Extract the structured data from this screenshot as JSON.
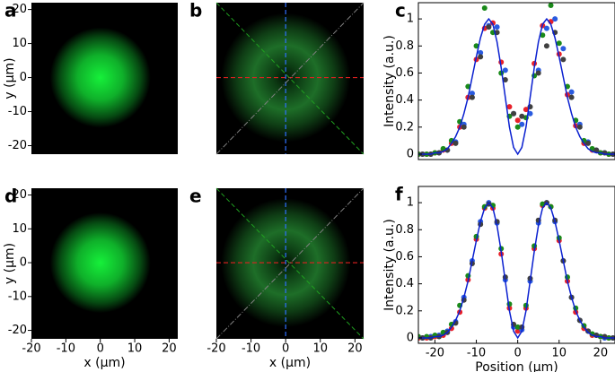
{
  "chart_data": [
    {
      "type": "image",
      "label": "a",
      "pattern": "spot",
      "xlim": [
        -20,
        22.5
      ],
      "ylim": [
        -22.5,
        22
      ],
      "yticks": [
        20,
        10,
        0,
        -10,
        -20
      ],
      "ylabel": "y (μm)"
    },
    {
      "type": "image",
      "label": "b",
      "pattern": "ring",
      "xlim": [
        -20,
        22.5
      ],
      "ylim": [
        -22.5,
        22
      ]
    },
    {
      "type": "line",
      "label": "c",
      "ylabel": "Intensity (a.u.)",
      "xlim": [
        -24,
        23.5
      ],
      "ylim": [
        -0.04,
        1.12
      ],
      "yticks": [
        0,
        0.2,
        0.4,
        0.6,
        0.8,
        1
      ],
      "series": [
        {
          "style": "markers",
          "color": "#e8202a",
          "x": [
            -24,
            -22,
            -20,
            -18,
            -16,
            -14,
            -12,
            -10,
            -8,
            -6,
            -4,
            -2,
            0,
            2,
            4,
            6,
            8,
            10,
            12,
            14,
            16,
            18,
            20,
            22,
            24
          ],
          "values": [
            0,
            0,
            0.01,
            0.03,
            0.08,
            0.2,
            0.42,
            0.7,
            0.93,
            0.97,
            0.68,
            0.35,
            0.25,
            0.33,
            0.67,
            0.95,
            0.98,
            0.74,
            0.44,
            0.21,
            0.08,
            0.03,
            0.01,
            0,
            0
          ]
        },
        {
          "style": "markers",
          "color": "#2a5be0",
          "x": [
            -23,
            -21,
            -19,
            -17,
            -15,
            -13,
            -11,
            -9,
            -7,
            -5,
            -3,
            -1,
            1,
            3,
            5,
            7,
            9,
            11,
            13,
            15,
            17,
            19,
            21,
            23,
            25
          ],
          "values": [
            0,
            0,
            0.01,
            0.03,
            0.09,
            0.22,
            0.45,
            0.75,
            0.95,
            0.94,
            0.62,
            0.3,
            0.22,
            0.3,
            0.62,
            0.93,
            1.0,
            0.78,
            0.46,
            0.22,
            0.09,
            0.03,
            0.01,
            0,
            0
          ]
        },
        {
          "style": "markers",
          "color": "#1a8a1a",
          "x": [
            -24,
            -22,
            -20,
            -18,
            -16,
            -14,
            -12,
            -10,
            -8,
            -6,
            -4,
            -2,
            0,
            2,
            4,
            6,
            8,
            10,
            12,
            14,
            16,
            18,
            20,
            22,
            24
          ],
          "values": [
            0,
            0,
            0.01,
            0.04,
            0.1,
            0.24,
            0.5,
            0.8,
            1.08,
            0.9,
            0.6,
            0.28,
            0.2,
            0.27,
            0.58,
            0.88,
            1.1,
            0.82,
            0.5,
            0.25,
            0.1,
            0.04,
            0.01,
            0,
            0
          ]
        },
        {
          "style": "markers",
          "color": "#404040",
          "x": [
            -23,
            -21,
            -19,
            -17,
            -15,
            -13,
            -11,
            -9,
            -7,
            -5,
            -3,
            -1,
            1,
            3,
            5,
            7,
            9,
            11,
            13,
            15,
            17,
            19,
            21,
            23,
            25
          ],
          "values": [
            0,
            0,
            0.01,
            0.03,
            0.08,
            0.2,
            0.42,
            0.72,
            0.94,
            0.9,
            0.55,
            0.3,
            0.28,
            0.35,
            0.6,
            0.8,
            0.9,
            0.7,
            0.42,
            0.2,
            0.08,
            0.03,
            0.01,
            0,
            0
          ]
        },
        {
          "style": "line",
          "color": "#0a20d0",
          "x": [
            -24,
            -23,
            -22,
            -21,
            -20,
            -19,
            -18,
            -17,
            -16,
            -15,
            -14,
            -13,
            -12,
            -11,
            -10,
            -9,
            -8,
            -7,
            -6,
            -5,
            -4,
            -3,
            -2,
            -1,
            0,
            1,
            2,
            3,
            4,
            5,
            6,
            7,
            8,
            9,
            10,
            11,
            12,
            13,
            14,
            15,
            16,
            17,
            18,
            19,
            20,
            21,
            22,
            23,
            24
          ],
          "values": [
            0,
            0,
            0,
            0,
            0.01,
            0.01,
            0.02,
            0.04,
            0.08,
            0.13,
            0.2,
            0.3,
            0.42,
            0.57,
            0.72,
            0.86,
            0.96,
            1,
            0.96,
            0.83,
            0.64,
            0.42,
            0.2,
            0.05,
            0,
            0.05,
            0.2,
            0.42,
            0.64,
            0.83,
            0.96,
            1,
            0.96,
            0.86,
            0.72,
            0.57,
            0.42,
            0.3,
            0.2,
            0.13,
            0.08,
            0.04,
            0.02,
            0.01,
            0.01,
            0,
            0,
            0,
            0
          ]
        }
      ]
    },
    {
      "type": "image",
      "label": "d",
      "pattern": "spot",
      "xlim": [
        -20,
        22.5
      ],
      "ylim": [
        -22.5,
        22
      ],
      "yticks": [
        20,
        10,
        0,
        -10,
        -20
      ],
      "ylabel": "y (μm)",
      "xticks": [
        -20,
        -10,
        0,
        10,
        20
      ],
      "xlabel": "x (μm)"
    },
    {
      "type": "image",
      "label": "e",
      "pattern": "ring",
      "xlim": [
        -20,
        22.5
      ],
      "ylim": [
        -22.5,
        22
      ],
      "xticks": [
        -20,
        -10,
        0,
        10,
        20
      ],
      "xlabel": "x (μm)"
    },
    {
      "type": "line",
      "label": "f",
      "ylabel": "Intensity (a.u.)",
      "xlabel": "Position (μm)",
      "xlim": [
        -24,
        23.5
      ],
      "ylim": [
        -0.04,
        1.12
      ],
      "yticks": [
        0,
        0.2,
        0.4,
        0.6,
        0.8,
        1
      ],
      "xticks": [
        -20,
        -10,
        0,
        10,
        20
      ],
      "series": [
        {
          "style": "markers",
          "color": "#e8202a",
          "x": [
            -24,
            -22,
            -20,
            -18,
            -16,
            -14,
            -12,
            -10,
            -8,
            -6,
            -4,
            -2,
            0,
            2,
            4,
            6,
            8,
            10,
            12,
            14,
            16,
            18,
            20,
            22,
            24
          ],
          "values": [
            0,
            0,
            0.01,
            0.02,
            0.07,
            0.19,
            0.43,
            0.73,
            0.96,
            0.96,
            0.62,
            0.22,
            0.05,
            0.22,
            0.66,
            0.98,
            0.97,
            0.72,
            0.42,
            0.19,
            0.07,
            0.02,
            0.01,
            0,
            0
          ]
        },
        {
          "style": "markers",
          "color": "#2a5be0",
          "x": [
            -23,
            -21,
            -19,
            -17,
            -15,
            -13,
            -11,
            -9,
            -7,
            -5,
            -3,
            -1,
            1,
            3,
            5,
            7,
            9,
            11,
            13,
            15,
            17,
            19,
            21,
            23,
            25
          ],
          "values": [
            0,
            0.01,
            0.02,
            0.05,
            0.12,
            0.3,
            0.57,
            0.86,
            1.0,
            0.85,
            0.43,
            0.08,
            0.06,
            0.42,
            0.85,
            1.0,
            0.86,
            0.57,
            0.3,
            0.13,
            0.05,
            0.02,
            0,
            0,
            0
          ]
        },
        {
          "style": "markers",
          "color": "#1a8a1a",
          "x": [
            -24,
            -22,
            -20,
            -18,
            -16,
            -14,
            -12,
            -10,
            -8,
            -6,
            -4,
            -2,
            0,
            2,
            4,
            6,
            8,
            10,
            12,
            14,
            16,
            18,
            20,
            22,
            24
          ],
          "values": [
            0.01,
            0.01,
            0.02,
            0.04,
            0.1,
            0.24,
            0.46,
            0.75,
            0.97,
            0.98,
            0.66,
            0.25,
            0.08,
            0.24,
            0.68,
            0.99,
            0.97,
            0.74,
            0.45,
            0.22,
            0.09,
            0.03,
            0.01,
            0,
            0
          ]
        },
        {
          "style": "markers",
          "color": "#404040",
          "x": [
            -23,
            -21,
            -19,
            -17,
            -15,
            -13,
            -11,
            -9,
            -7,
            -5,
            -3,
            -1,
            1,
            3,
            5,
            7,
            9,
            11,
            13,
            15,
            17,
            19,
            21,
            23,
            25
          ],
          "values": [
            0,
            0,
            0.01,
            0.04,
            0.11,
            0.28,
            0.55,
            0.84,
            0.99,
            0.86,
            0.45,
            0.1,
            0.08,
            0.44,
            0.87,
            1.0,
            0.87,
            0.57,
            0.3,
            0.13,
            0.05,
            0.02,
            0.01,
            0,
            0
          ]
        },
        {
          "style": "line",
          "color": "#0a20d0",
          "x": [
            -24,
            -23,
            -22,
            -21,
            -20,
            -19,
            -18,
            -17,
            -16,
            -15,
            -14,
            -13,
            -12,
            -11,
            -10,
            -9,
            -8,
            -7,
            -6,
            -5,
            -4,
            -3,
            -2,
            -1,
            0,
            1,
            2,
            3,
            4,
            5,
            6,
            7,
            8,
            9,
            10,
            11,
            12,
            13,
            14,
            15,
            16,
            17,
            18,
            19,
            20,
            21,
            22,
            23,
            24
          ],
          "values": [
            0,
            0,
            0,
            0,
            0.01,
            0.01,
            0.02,
            0.04,
            0.08,
            0.13,
            0.2,
            0.3,
            0.42,
            0.57,
            0.72,
            0.86,
            0.96,
            1,
            0.96,
            0.83,
            0.64,
            0.42,
            0.2,
            0.05,
            0,
            0.05,
            0.2,
            0.42,
            0.64,
            0.83,
            0.96,
            1,
            0.96,
            0.86,
            0.72,
            0.57,
            0.42,
            0.3,
            0.2,
            0.13,
            0.08,
            0.04,
            0.02,
            0.01,
            0.01,
            0,
            0,
            0,
            0
          ]
        }
      ]
    }
  ]
}
